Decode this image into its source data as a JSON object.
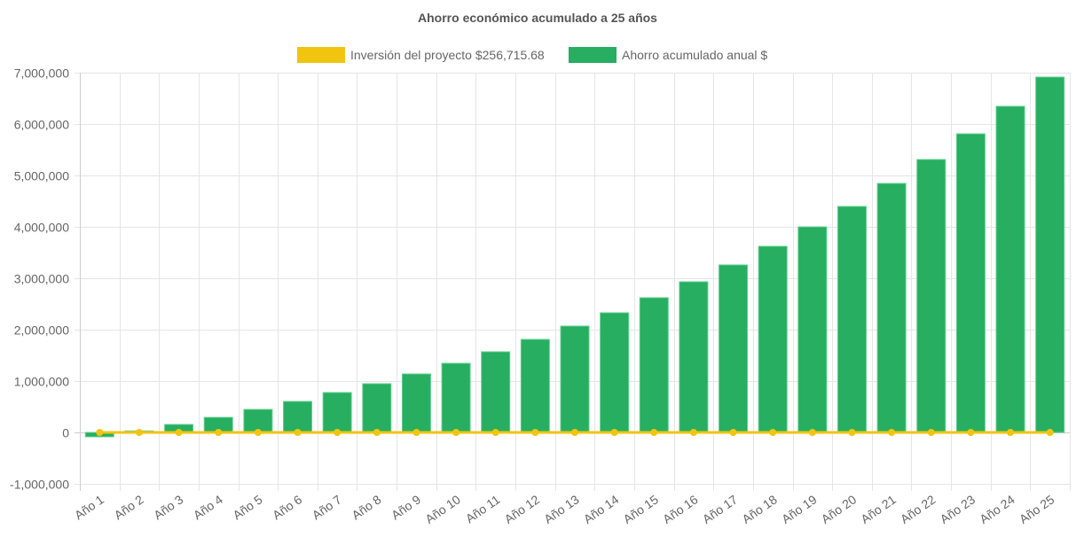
{
  "chart_data": {
    "type": "bar",
    "title": "Ahorro económico acumulado a 25 años",
    "xlabel": "",
    "ylabel": "",
    "ylim": [
      -1000000,
      7000000
    ],
    "yticks": [
      "-1,000,000",
      "0",
      "1,000,000",
      "2,000,000",
      "3,000,000",
      "4,000,000",
      "5,000,000",
      "6,000,000",
      "7,000,000"
    ],
    "ytick_values": [
      -1000000,
      0,
      1000000,
      2000000,
      3000000,
      4000000,
      5000000,
      6000000,
      7000000
    ],
    "grid": true,
    "legend_position": "top",
    "categories": [
      "Año 1",
      "Año 2",
      "Año 3",
      "Año 4",
      "Año 5",
      "Año 6",
      "Año 7",
      "Año 8",
      "Año 9",
      "Año 10",
      "Año 11",
      "Año 12",
      "Año 13",
      "Año 14",
      "Año 15",
      "Año 16",
      "Año 17",
      "Año 18",
      "Año 19",
      "Año 20",
      "Año 21",
      "Año 22",
      "Año 23",
      "Año 24",
      "Año 25"
    ],
    "series": [
      {
        "name": "Inversión del proyecto $256,715.68",
        "type": "line",
        "color": "#f1c40f",
        "values": [
          0,
          0,
          0,
          0,
          0,
          0,
          0,
          0,
          0,
          0,
          0,
          0,
          0,
          0,
          0,
          0,
          0,
          0,
          0,
          0,
          0,
          0,
          0,
          0,
          0
        ]
      },
      {
        "name": "Ahorro acumulado anual $",
        "type": "bar",
        "color": "#27ae60",
        "values": [
          -85000,
          30000,
          155000,
          293000,
          448000,
          603000,
          776000,
          948000,
          1138000,
          1345000,
          1569000,
          1810000,
          2069000,
          2328000,
          2621000,
          2931000,
          3259000,
          3621000,
          4000000,
          4397000,
          4845000,
          5310000,
          5810000,
          6345000,
          6914000
        ]
      }
    ]
  }
}
